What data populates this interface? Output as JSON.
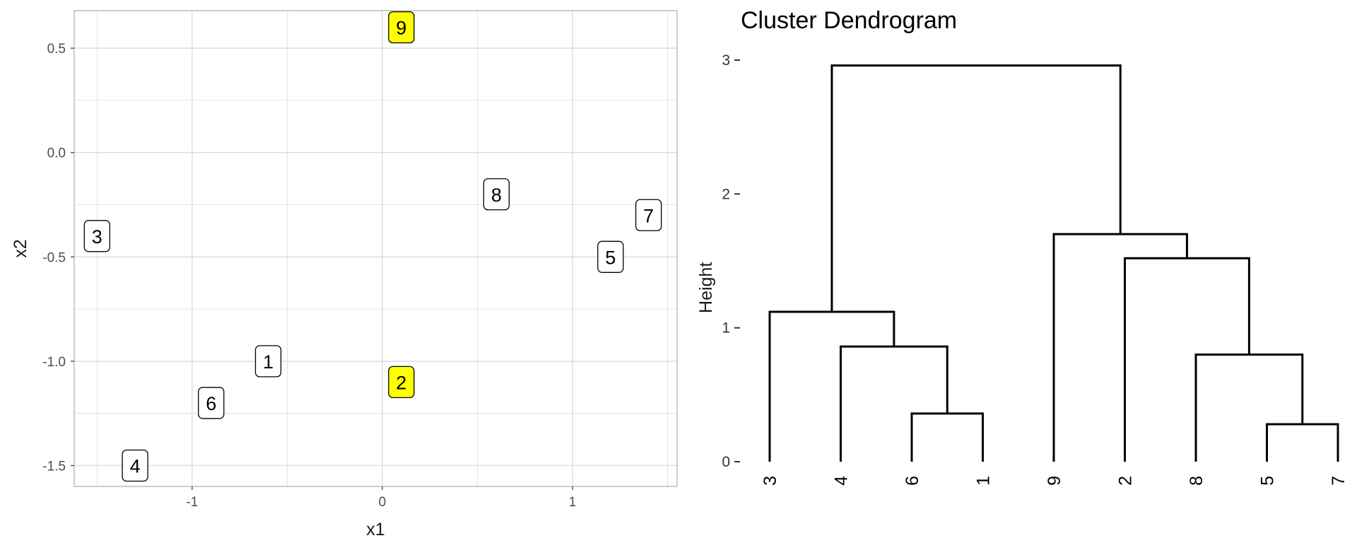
{
  "chart_data": [
    {
      "type": "scatter",
      "title": "",
      "xlabel": "x1",
      "ylabel": "x2",
      "xlim": [
        -1.62,
        1.55
      ],
      "ylim": [
        -1.6,
        0.68
      ],
      "xticks": [
        -1,
        0,
        1
      ],
      "xtick_labels": [
        "-1",
        "0",
        "1"
      ],
      "yticks": [
        0.5,
        0.0,
        -0.5,
        -1.0,
        -1.5
      ],
      "ytick_labels": [
        "0.5",
        "0.0",
        "-0.5",
        "-1.0",
        "-1.5"
      ],
      "grid": true,
      "points": [
        {
          "label": "1",
          "x": -0.6,
          "y": -1.0,
          "highlight": false
        },
        {
          "label": "2",
          "x": 0.1,
          "y": -1.1,
          "highlight": true
        },
        {
          "label": "3",
          "x": -1.5,
          "y": -0.4,
          "highlight": false
        },
        {
          "label": "4",
          "x": -1.3,
          "y": -1.5,
          "highlight": false
        },
        {
          "label": "5",
          "x": 1.2,
          "y": -0.5,
          "highlight": false
        },
        {
          "label": "6",
          "x": -0.9,
          "y": -1.2,
          "highlight": false
        },
        {
          "label": "7",
          "x": 1.4,
          "y": -0.3,
          "highlight": false
        },
        {
          "label": "8",
          "x": 0.6,
          "y": -0.2,
          "highlight": false
        },
        {
          "label": "9",
          "x": 0.1,
          "y": 0.6,
          "highlight": true
        }
      ],
      "colors": {
        "highlight": "#ffff00",
        "normal": "#ffffff",
        "grid": "#dcdcdc",
        "panel_border": "#b3b3b3"
      }
    },
    {
      "type": "dendrogram",
      "title": "Cluster Dendrogram",
      "ylabel": "Height",
      "ylim": [
        0,
        3
      ],
      "yticks": [
        0,
        1,
        2,
        3
      ],
      "ytick_labels": [
        "0",
        "1",
        "2",
        "3"
      ],
      "leaf_order": [
        "3",
        "4",
        "6",
        "1",
        "9",
        "2",
        "8",
        "5",
        "7"
      ],
      "merges": [
        {
          "left": "6",
          "right": "1",
          "height": 0.36
        },
        {
          "left": "5",
          "right": "7",
          "height": 0.28
        },
        {
          "left": "8",
          "right": "5,7",
          "height": 0.8
        },
        {
          "left": "4",
          "right": "6,1",
          "height": 0.86
        },
        {
          "left": "3",
          "right": "4,6,1",
          "height": 1.12
        },
        {
          "left": "2",
          "right": "8,5,7",
          "height": 1.52
        },
        {
          "left": "9",
          "right": "2,8,5,7",
          "height": 1.7
        },
        {
          "left": "3,4,6,1",
          "right": "9,2,8,5,7",
          "height": 2.96
        }
      ]
    }
  ]
}
